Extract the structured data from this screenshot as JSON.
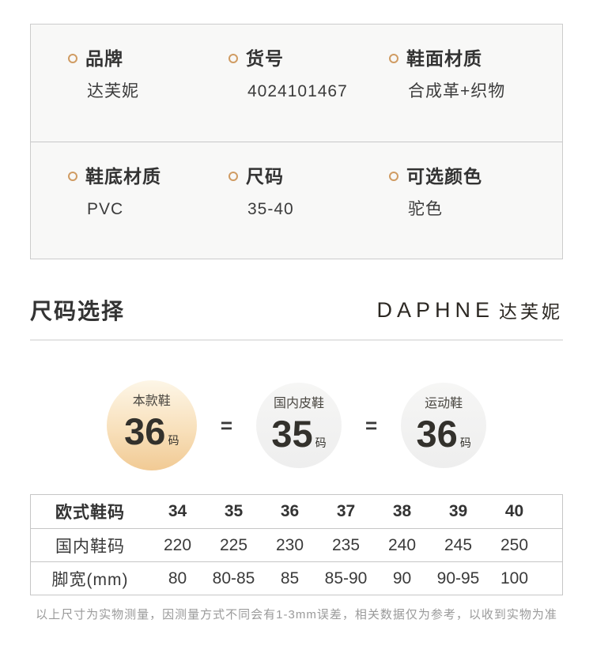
{
  "colors": {
    "accent_ring": "#d09c63",
    "spec_bg": "#f8f8f7",
    "border": "#c6c6c6",
    "divider": "#e4e4e4",
    "text_dark": "#333333",
    "text_gray": "#9a9a9a",
    "highlight_circle_top": "#fdf6e7",
    "highlight_circle_bottom": "#f1ca94",
    "gray_circle": "#f0f0f0"
  },
  "spec_table": {
    "rows": [
      [
        {
          "label": "品牌",
          "value": "达芙妮"
        },
        {
          "label": "货号",
          "value": "4024101467"
        },
        {
          "label": "鞋面材质",
          "value": "合成革+织物"
        }
      ],
      [
        {
          "label": "鞋底材质",
          "value": "PVC"
        },
        {
          "label": "尺码",
          "value": "35-40"
        },
        {
          "label": "可选颜色",
          "value": "驼色"
        }
      ]
    ]
  },
  "size_section": {
    "title": "尺码选择",
    "brand_en": "DAPHNE",
    "brand_cn": "达芙妮",
    "equals": "=",
    "conversion": [
      {
        "label": "本款鞋",
        "size": "36",
        "unit": "码"
      },
      {
        "label": "国内皮鞋",
        "size": "35",
        "unit": "码"
      },
      {
        "label": "运动鞋",
        "size": "36",
        "unit": "码"
      }
    ]
  },
  "chart_data": {
    "type": "table",
    "title": "尺码选择",
    "columns": [
      "欧式鞋码",
      "34",
      "35",
      "36",
      "37",
      "38",
      "39",
      "40"
    ],
    "rows": [
      [
        "国内鞋码",
        "220",
        "225",
        "230",
        "235",
        "240",
        "245",
        "250"
      ],
      [
        "脚宽(mm)",
        "80",
        "80-85",
        "85",
        "85-90",
        "90",
        "90-95",
        "100"
      ]
    ]
  },
  "size_table": {
    "rows": [
      {
        "label": "欧式鞋码",
        "values": [
          "34",
          "35",
          "36",
          "37",
          "38",
          "39",
          "40"
        ]
      },
      {
        "label": "国内鞋码",
        "values": [
          "220",
          "225",
          "230",
          "235",
          "240",
          "245",
          "250"
        ]
      },
      {
        "label": "脚宽(mm)",
        "values": [
          "80",
          "80-85",
          "85",
          "85-90",
          "90",
          "90-95",
          "100"
        ]
      }
    ]
  },
  "footer_note": "以上尺寸为实物测量，因测量方式不同会有1-3mm误差，相关数据仅为参考，以收到实物为准"
}
